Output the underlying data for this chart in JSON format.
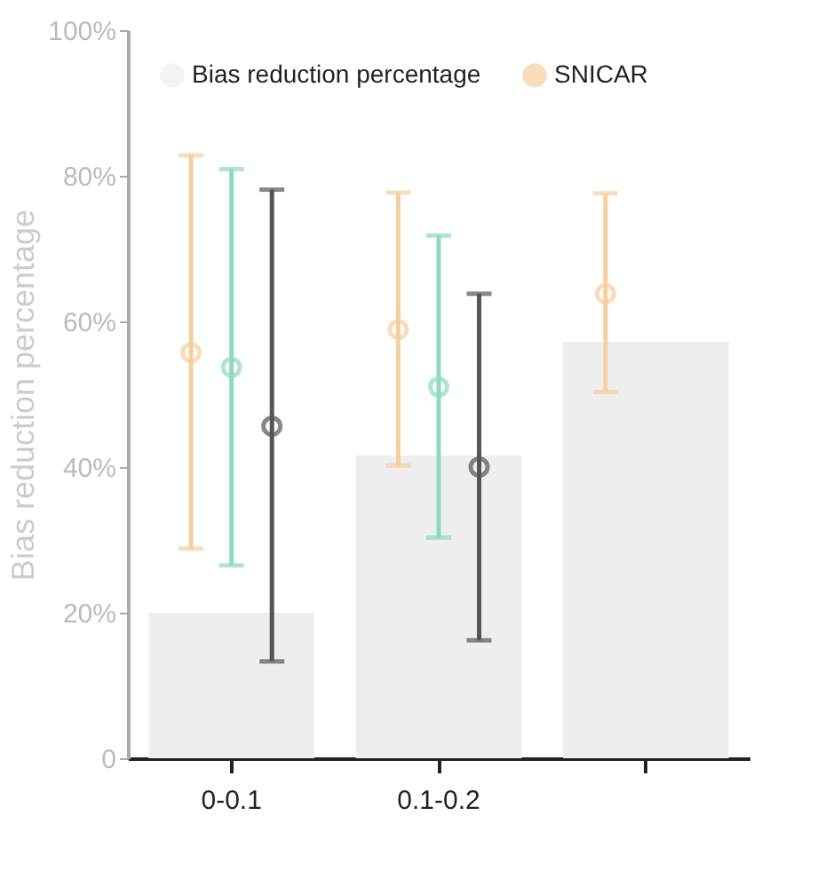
{
  "chart_data": {
    "type": "bar",
    "ylabel": "Bias reduction percentage",
    "categories": [
      "0-0.1",
      "0.1-0.2",
      null
    ],
    "series": [
      {
        "name": "Bias reduction percentage",
        "type": "bar",
        "color": "#eeeeee",
        "values": [
          20,
          41.6,
          57.2
        ]
      },
      {
        "name": "SNICAR",
        "type": "scatter",
        "color": "#f5cf9f",
        "values": [
          55.7,
          58.9,
          63.8
        ],
        "errors": [
          [
            28.8,
            82.8
          ],
          [
            40.2,
            77.7
          ],
          [
            50.3,
            77.6
          ]
        ]
      },
      {
        "type": "scatter",
        "color": "#8fd9bf",
        "values": [
          53.7,
          51,
          null
        ],
        "errors": [
          [
            26.5,
            80.9
          ],
          [
            30.3,
            71.8
          ],
          null
        ]
      },
      {
        "type": "scatter",
        "color": "#555555",
        "values": [
          45.6,
          40,
          null
        ],
        "errors": [
          [
            13.3,
            78.1
          ],
          [
            16.2,
            63.8
          ],
          null
        ]
      }
    ],
    "ylim": [
      0,
      100
    ],
    "yticks": [
      {
        "value": 0,
        "label": "0"
      },
      {
        "value": 20,
        "label": "20%"
      },
      {
        "value": 40,
        "label": "40%"
      },
      {
        "value": 60,
        "label": "60%"
      },
      {
        "value": 80,
        "label": "80%"
      },
      {
        "value": 100,
        "label": "100%"
      }
    ],
    "marker": "circle",
    "grid": false,
    "legend": "top left"
  }
}
